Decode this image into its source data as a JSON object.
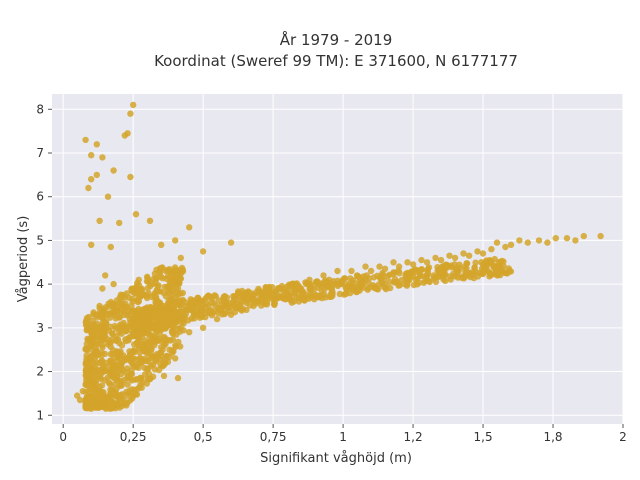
{
  "chart_data": {
    "type": "scatter",
    "title": "År 1979 - 2019",
    "subtitle": "Koordinat (Sweref 99 TM): E 371600, N 6177177",
    "xlabel": "Signifikant våghöjd (m)",
    "ylabel": "Vågperiod (s)",
    "xlim": [
      -0.04,
      2.0
    ],
    "ylim": [
      0.8,
      8.35
    ],
    "xticks": [
      0,
      0.25,
      0.5,
      0.75,
      1.0,
      1.25,
      1.5,
      1.75,
      2.0
    ],
    "xtick_labels": [
      "0",
      "0,25",
      "0,5",
      "0,75",
      "1",
      "1,2",
      "1,5",
      "1,8",
      "2"
    ],
    "yticks": [
      1,
      2,
      3,
      4,
      5,
      6,
      7,
      8
    ],
    "ytick_labels": [
      "1",
      "2",
      "3",
      "4",
      "5",
      "6",
      "7",
      "8"
    ],
    "grid": true,
    "legend": "none",
    "colors": {
      "points": "#d4a52a",
      "background": "#e8e8f0",
      "grid": "#ffffff"
    },
    "series": [
      {
        "points": [
          [
            0.05,
            1.45
          ],
          [
            0.06,
            1.35
          ],
          [
            0.07,
            1.55
          ],
          [
            0.08,
            1.3
          ],
          [
            0.08,
            1.7
          ],
          [
            0.09,
            1.2
          ],
          [
            0.09,
            1.9
          ],
          [
            0.1,
            1.15
          ],
          [
            0.1,
            2.3
          ],
          [
            0.11,
            2.7
          ],
          [
            0.11,
            1.6
          ],
          [
            0.12,
            3.1
          ],
          [
            0.12,
            2.0
          ],
          [
            0.13,
            3.5
          ],
          [
            0.13,
            1.4
          ],
          [
            0.14,
            3.9
          ],
          [
            0.14,
            2.6
          ],
          [
            0.15,
            4.2
          ],
          [
            0.15,
            1.8
          ],
          [
            0.16,
            3.3
          ],
          [
            0.17,
            2.4
          ],
          [
            0.18,
            4.0
          ],
          [
            0.19,
            1.6
          ],
          [
            0.2,
            3.0
          ],
          [
            0.21,
            2.2
          ],
          [
            0.22,
            3.7
          ],
          [
            0.23,
            1.9
          ],
          [
            0.24,
            2.8
          ],
          [
            0.25,
            3.4
          ],
          [
            0.26,
            2.1
          ],
          [
            0.27,
            4.1
          ],
          [
            0.28,
            2.6
          ],
          [
            0.3,
            3.1
          ],
          [
            0.31,
            2.3
          ],
          [
            0.33,
            3.6
          ],
          [
            0.35,
            2.7
          ],
          [
            0.37,
            3.3
          ],
          [
            0.39,
            2.9
          ],
          [
            0.41,
            3.9
          ],
          [
            0.43,
            3.1
          ],
          [
            0.45,
            2.9
          ],
          [
            0.48,
            3.3
          ],
          [
            0.5,
            3.0
          ],
          [
            0.52,
            3.5
          ],
          [
            0.55,
            3.2
          ],
          [
            0.58,
            3.6
          ],
          [
            0.6,
            3.3
          ],
          [
            0.63,
            3.5
          ],
          [
            0.65,
            3.8
          ],
          [
            0.68,
            3.5
          ],
          [
            0.7,
            3.6
          ],
          [
            0.73,
            3.8
          ],
          [
            0.75,
            3.7
          ],
          [
            0.78,
            3.9
          ],
          [
            0.8,
            3.8
          ],
          [
            0.83,
            4.0
          ],
          [
            0.85,
            3.9
          ],
          [
            0.88,
            4.1
          ],
          [
            0.9,
            4.0
          ],
          [
            0.93,
            4.2
          ],
          [
            0.95,
            4.1
          ],
          [
            0.98,
            4.3
          ],
          [
            1.0,
            4.1
          ],
          [
            1.03,
            4.3
          ],
          [
            1.05,
            4.2
          ],
          [
            1.08,
            4.4
          ],
          [
            1.1,
            4.3
          ],
          [
            1.13,
            4.4
          ],
          [
            1.15,
            4.35
          ],
          [
            1.18,
            4.5
          ],
          [
            1.2,
            4.4
          ],
          [
            1.23,
            4.5
          ],
          [
            1.25,
            4.45
          ],
          [
            1.28,
            4.55
          ],
          [
            1.3,
            4.5
          ],
          [
            1.33,
            4.6
          ],
          [
            1.35,
            4.55
          ],
          [
            1.38,
            4.65
          ],
          [
            1.4,
            4.6
          ],
          [
            1.43,
            4.7
          ],
          [
            1.45,
            4.65
          ],
          [
            1.48,
            4.75
          ],
          [
            1.5,
            4.7
          ],
          [
            1.53,
            4.8
          ],
          [
            1.55,
            4.95
          ],
          [
            1.58,
            4.85
          ],
          [
            1.6,
            4.9
          ],
          [
            1.63,
            5.0
          ],
          [
            1.66,
            4.95
          ],
          [
            1.7,
            5.0
          ],
          [
            1.73,
            4.95
          ],
          [
            1.76,
            5.05
          ],
          [
            1.8,
            5.05
          ],
          [
            1.83,
            5.0
          ],
          [
            1.86,
            5.1
          ],
          [
            1.92,
            5.1
          ],
          [
            0.08,
            7.3
          ],
          [
            0.1,
            6.4
          ],
          [
            0.12,
            7.2
          ],
          [
            0.1,
            6.95
          ],
          [
            0.12,
            6.5
          ],
          [
            0.18,
            6.6
          ],
          [
            0.23,
            7.45
          ],
          [
            0.25,
            8.1
          ],
          [
            0.22,
            7.4
          ],
          [
            0.24,
            7.9
          ],
          [
            0.14,
            6.9
          ],
          [
            0.09,
            6.2
          ],
          [
            0.16,
            6.0
          ],
          [
            0.24,
            6.45
          ],
          [
            0.2,
            5.4
          ],
          [
            0.31,
            5.45
          ],
          [
            0.13,
            5.45
          ],
          [
            0.26,
            5.6
          ],
          [
            0.4,
            5.0
          ],
          [
            0.45,
            5.3
          ],
          [
            0.6,
            4.95
          ],
          [
            0.5,
            4.75
          ],
          [
            0.42,
            4.6
          ],
          [
            0.35,
            4.9
          ],
          [
            0.17,
            4.85
          ],
          [
            0.1,
            4.9
          ],
          [
            0.36,
            1.9
          ],
          [
            0.41,
            1.85
          ],
          [
            0.3,
            2.05
          ],
          [
            0.4,
            2.3
          ],
          [
            0.2,
            1.4
          ],
          [
            0.25,
            1.5
          ]
        ]
      }
    ]
  }
}
